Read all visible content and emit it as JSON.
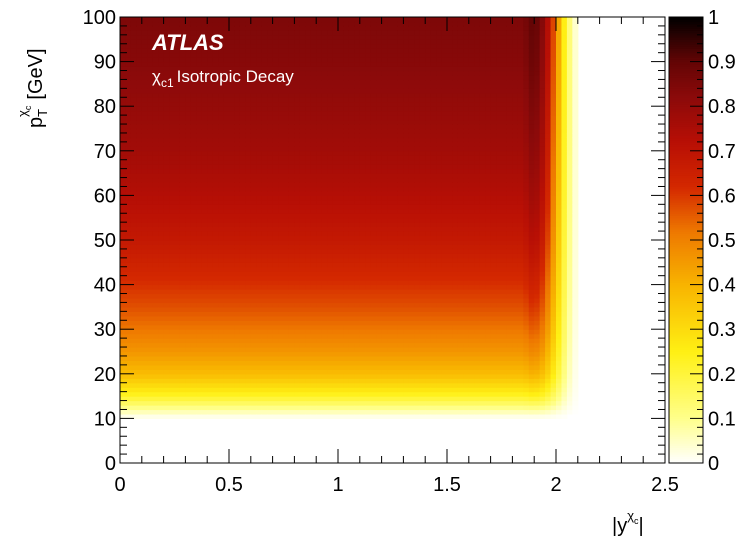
{
  "chart_data": {
    "type": "heatmap",
    "experiment_label": "ATLAS",
    "subtitle": {
      "symbol": "χ",
      "subscript": "c1",
      "text": "Isotropic Decay"
    },
    "xlabel": {
      "prefix": "|y",
      "superscript": "χ",
      "superscript_sub": "c",
      "suffix": "|"
    },
    "ylabel": {
      "prefix": "p",
      "subscript": "T",
      "superscript": "χ",
      "superscript_sub": "c",
      "suffix": "[GeV]"
    },
    "xlim": [
      0,
      2.5
    ],
    "ylim": [
      0,
      100
    ],
    "zlim": [
      0,
      1
    ],
    "x_ticks": [
      "0",
      "0.5",
      "1",
      "1.5",
      "2",
      "2.5"
    ],
    "y_ticks": [
      "0",
      "10",
      "20",
      "30",
      "40",
      "50",
      "60",
      "70",
      "80",
      "90",
      "100"
    ],
    "z_ticks": [
      "0",
      "0.1",
      "0.2",
      "0.3",
      "0.4",
      "0.5",
      "0.6",
      "0.7",
      "0.8",
      "0.9",
      "1"
    ],
    "grid": false,
    "colorbar": "right",
    "acceptance_profile_vs_pT": {
      "pT": [
        0,
        10,
        12,
        14,
        16,
        18,
        20,
        25,
        30,
        35,
        40,
        50,
        60,
        70,
        80,
        90,
        100
      ],
      "acceptance": [
        0,
        0,
        0.08,
        0.18,
        0.26,
        0.32,
        0.38,
        0.46,
        0.52,
        0.57,
        0.61,
        0.68,
        0.73,
        0.77,
        0.8,
        0.83,
        0.85
      ]
    },
    "rapidity_edge": {
      "y": [
        1.75,
        1.85,
        1.9,
        1.95,
        2.0,
        2.05,
        2.1
      ],
      "acceptance_factor": [
        1.0,
        1.0,
        1.08,
        0.95,
        0.6,
        0.2,
        0.0
      ]
    },
    "colors": {
      "low": "#ffffff",
      "mid": "#ffff20",
      "orange": "#f28c00",
      "red": "#cc1100",
      "high": "#000000"
    }
  }
}
